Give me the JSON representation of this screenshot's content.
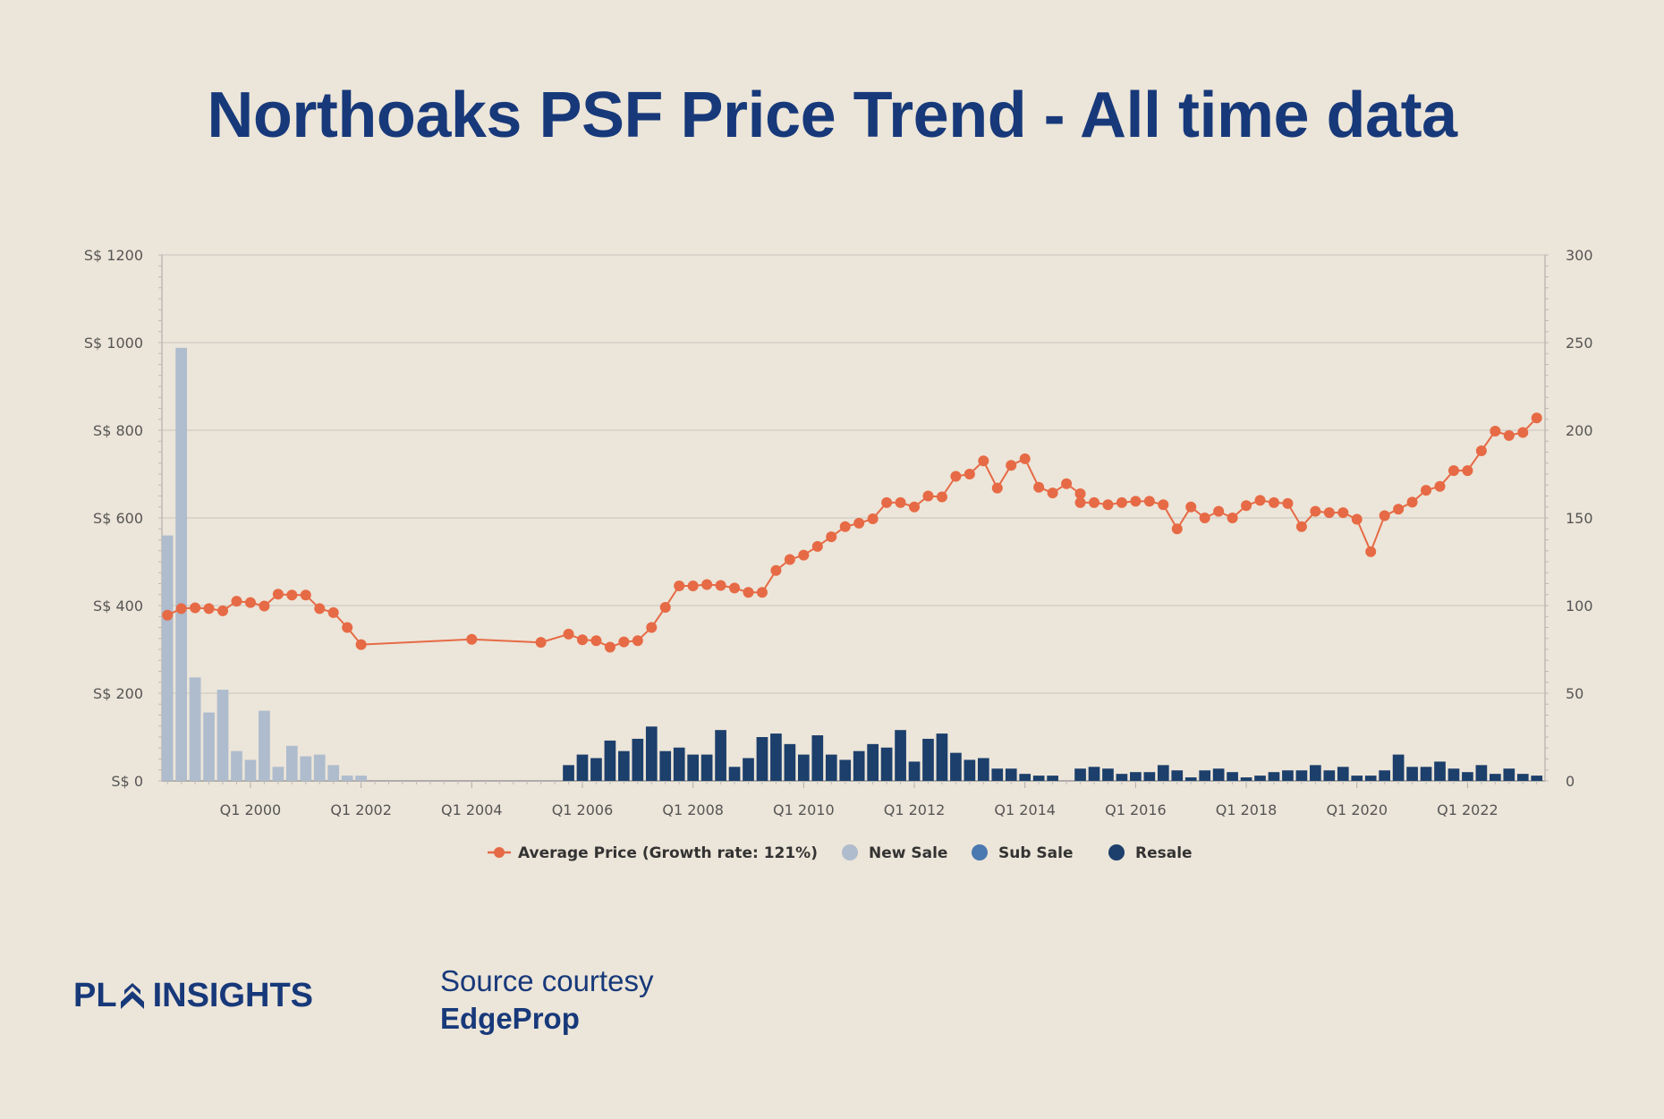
{
  "title": "Northoaks PSF Price Trend - All time data",
  "logo": {
    "part1": "PL",
    "part2": "INSIGHTS"
  },
  "source": {
    "line1": "Source courtesy",
    "line2": "EdgeProp"
  },
  "colors": {
    "background": "#ece5d9",
    "title": "#17397a",
    "average_price": "#e66a45",
    "new_sale": "#aebccd",
    "sub_sale": "#4a78b0",
    "resale": "#1c3f6b"
  },
  "chart_data": {
    "type": "bar",
    "x_tick_labels": [
      "Q1 2000",
      "Q1 2002",
      "Q1 2004",
      "Q1 2006",
      "Q1 2008",
      "Q1 2010",
      "Q1 2012",
      "Q1 2014",
      "Q1 2016",
      "Q1 2018",
      "Q1 2020",
      "Q1 2022"
    ],
    "x_range": [
      1998.4,
      2023.4
    ],
    "y_left": {
      "ticks": [
        "S$ 1200",
        "S$ 1000",
        "S$ 800",
        "S$ 600",
        "S$ 400",
        "S$ 200",
        "S$ 0"
      ],
      "range": [
        0,
        1200
      ]
    },
    "y_right": {
      "ticks": [
        "300",
        "250",
        "200",
        "150",
        "100",
        "50",
        "0"
      ],
      "range": [
        0,
        300
      ]
    },
    "grid": true,
    "legend_position": "bottom",
    "legend": [
      {
        "label": "Average Price (Growth rate: 121%)",
        "type": "line",
        "color": "#e66a45"
      },
      {
        "label": "New Sale",
        "type": "dot",
        "color": "#aebccd"
      },
      {
        "label": "Sub Sale",
        "type": "dot",
        "color": "#4a78b0"
      },
      {
        "label": "Resale",
        "type": "dot",
        "color": "#1c3f6b"
      }
    ],
    "series": [
      {
        "name": "New Sale",
        "axis": "right",
        "kind": "bar",
        "points": [
          [
            1998.5,
            140
          ],
          [
            1998.75,
            247
          ],
          [
            1999.0,
            59
          ],
          [
            1999.25,
            39
          ],
          [
            1999.5,
            52
          ],
          [
            1999.75,
            17
          ],
          [
            2000.0,
            12
          ],
          [
            2000.25,
            40
          ],
          [
            2000.5,
            8
          ],
          [
            2000.75,
            20
          ],
          [
            2001.0,
            14
          ],
          [
            2001.25,
            15
          ],
          [
            2001.5,
            9
          ],
          [
            2001.75,
            3
          ],
          [
            2002.0,
            3
          ]
        ]
      },
      {
        "name": "Resale",
        "axis": "right",
        "kind": "bar",
        "points": [
          [
            2005.75,
            9
          ],
          [
            2006.0,
            15
          ],
          [
            2006.25,
            13
          ],
          [
            2006.5,
            23
          ],
          [
            2006.75,
            17
          ],
          [
            2007.0,
            24
          ],
          [
            2007.25,
            31
          ],
          [
            2007.5,
            17
          ],
          [
            2007.75,
            19
          ],
          [
            2008.0,
            15
          ],
          [
            2008.25,
            15
          ],
          [
            2008.5,
            29
          ],
          [
            2008.75,
            8
          ],
          [
            2009.0,
            13
          ],
          [
            2009.25,
            25
          ],
          [
            2009.5,
            27
          ],
          [
            2009.75,
            21
          ],
          [
            2010.0,
            15
          ],
          [
            2010.25,
            26
          ],
          [
            2010.5,
            15
          ],
          [
            2010.75,
            12
          ],
          [
            2011.0,
            17
          ],
          [
            2011.25,
            21
          ],
          [
            2011.5,
            19
          ],
          [
            2011.75,
            29
          ],
          [
            2012.0,
            11
          ],
          [
            2012.25,
            24
          ],
          [
            2012.5,
            27
          ],
          [
            2012.75,
            16
          ],
          [
            2013.0,
            12
          ],
          [
            2013.25,
            13
          ],
          [
            2013.5,
            7
          ],
          [
            2013.75,
            7
          ],
          [
            2014.0,
            4
          ],
          [
            2014.25,
            3
          ],
          [
            2014.5,
            3
          ],
          [
            2014.75,
            0
          ],
          [
            2015.0,
            7
          ],
          [
            2015.25,
            8
          ],
          [
            2015.5,
            7
          ],
          [
            2015.75,
            4
          ],
          [
            2016.0,
            5
          ],
          [
            2016.25,
            5
          ],
          [
            2016.5,
            9
          ],
          [
            2016.75,
            6
          ],
          [
            2017.0,
            2
          ],
          [
            2017.25,
            6
          ],
          [
            2017.5,
            7
          ],
          [
            2017.75,
            5
          ],
          [
            2018.0,
            2
          ],
          [
            2018.25,
            3
          ],
          [
            2018.5,
            5
          ],
          [
            2018.75,
            6
          ],
          [
            2019.0,
            6
          ],
          [
            2019.25,
            9
          ],
          [
            2019.5,
            6
          ],
          [
            2019.75,
            8
          ],
          [
            2020.0,
            3
          ],
          [
            2020.25,
            3
          ],
          [
            2020.5,
            6
          ],
          [
            2020.75,
            15
          ],
          [
            2021.0,
            8
          ],
          [
            2021.25,
            8
          ],
          [
            2021.5,
            11
          ],
          [
            2021.75,
            7
          ],
          [
            2022.0,
            5
          ],
          [
            2022.25,
            9
          ],
          [
            2022.5,
            4
          ],
          [
            2022.75,
            7
          ],
          [
            2023.0,
            4
          ],
          [
            2023.25,
            3
          ]
        ]
      },
      {
        "name": "Average Price (Growth rate: 121%)",
        "axis": "left",
        "kind": "line",
        "points": [
          [
            1998.5,
            378
          ],
          [
            1998.75,
            393
          ],
          [
            1999.0,
            395
          ],
          [
            1999.25,
            393
          ],
          [
            1999.5,
            388
          ],
          [
            1999.75,
            410
          ],
          [
            2000.0,
            407
          ],
          [
            2000.25,
            399
          ],
          [
            2000.5,
            426
          ],
          [
            2000.75,
            424
          ],
          [
            2001.0,
            424
          ],
          [
            2001.25,
            393
          ],
          [
            2001.5,
            384
          ],
          [
            2001.75,
            350
          ],
          [
            2002.0,
            311
          ],
          [
            2004.0,
            323
          ],
          [
            2005.25,
            316
          ],
          [
            2005.75,
            335
          ],
          [
            2006.0,
            322
          ],
          [
            2006.25,
            320
          ],
          [
            2006.5,
            305
          ],
          [
            2006.75,
            317
          ],
          [
            2007.0,
            320
          ],
          [
            2007.25,
            350
          ],
          [
            2007.5,
            396
          ],
          [
            2007.75,
            445
          ],
          [
            2008.0,
            445
          ],
          [
            2008.25,
            448
          ],
          [
            2008.5,
            446
          ],
          [
            2008.75,
            440
          ],
          [
            2009.0,
            430
          ],
          [
            2009.25,
            430
          ],
          [
            2009.5,
            480
          ],
          [
            2009.75,
            505
          ],
          [
            2010.0,
            515
          ],
          [
            2010.25,
            535
          ],
          [
            2010.5,
            557
          ],
          [
            2010.75,
            580
          ],
          [
            2011.0,
            588
          ],
          [
            2011.25,
            598
          ],
          [
            2011.5,
            635
          ],
          [
            2011.75,
            635
          ],
          [
            2012.0,
            625
          ],
          [
            2012.25,
            650
          ],
          [
            2012.5,
            648
          ],
          [
            2012.75,
            695
          ],
          [
            2013.0,
            700
          ],
          [
            2013.25,
            730
          ],
          [
            2013.5,
            668
          ],
          [
            2013.75,
            720
          ],
          [
            2014.0,
            735
          ],
          [
            2014.25,
            670
          ],
          [
            2014.5,
            657
          ],
          [
            2014.75,
            678
          ],
          [
            2015.0,
            655
          ],
          [
            2015.25,
            635
          ],
          [
            2015.5,
            630
          ],
          [
            2015.75,
            635
          ],
          [
            2015.0,
            635
          ],
          [
            2016.0,
            638
          ],
          [
            2016.25,
            638
          ],
          [
            2016.5,
            630
          ],
          [
            2016.75,
            575
          ],
          [
            2017.0,
            625
          ],
          [
            2017.25,
            600
          ],
          [
            2017.5,
            615
          ],
          [
            2017.75,
            600
          ],
          [
            2018.0,
            628
          ],
          [
            2018.25,
            640
          ],
          [
            2018.5,
            635
          ],
          [
            2018.75,
            633
          ],
          [
            2019.0,
            580
          ],
          [
            2019.25,
            615
          ],
          [
            2019.5,
            612
          ],
          [
            2019.75,
            612
          ],
          [
            2020.0,
            597
          ],
          [
            2020.25,
            523
          ],
          [
            2020.5,
            605
          ],
          [
            2020.75,
            620
          ],
          [
            2021.0,
            636
          ],
          [
            2021.25,
            663
          ],
          [
            2021.5,
            672
          ],
          [
            2021.75,
            708
          ],
          [
            2022.0,
            708
          ],
          [
            2022.25,
            753
          ],
          [
            2022.5,
            798
          ],
          [
            2022.75,
            788
          ],
          [
            2023.0,
            795
          ],
          [
            2023.25,
            828
          ]
        ]
      }
    ]
  }
}
